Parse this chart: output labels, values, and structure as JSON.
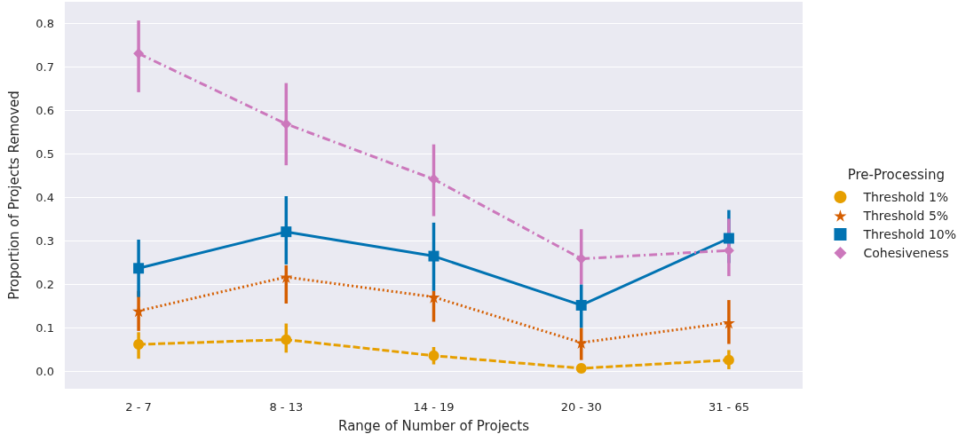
{
  "chart_data": {
    "type": "line",
    "xlabel": "Range of Number of Projects",
    "ylabel": "Proportion of Projects Removed",
    "legend_title": "Pre-Processing",
    "legend": "right",
    "grid": "y",
    "categories": [
      "2 - 7",
      "8 - 13",
      "14 - 19",
      "20 - 30",
      "31 - 65"
    ],
    "ylim": [
      -0.04,
      0.85
    ],
    "yticks": [
      {
        "value": 0,
        "label": "0.0"
      },
      {
        "value": 0.1,
        "label": "0.1"
      },
      {
        "value": 0.2,
        "label": "0.2"
      },
      {
        "value": 0.3,
        "label": "0.3"
      },
      {
        "value": 0.4,
        "label": "0.4"
      },
      {
        "value": 0.5,
        "label": "0.5"
      },
      {
        "value": 0.6,
        "label": "0.6"
      },
      {
        "value": 0.7,
        "label": "0.7"
      },
      {
        "value": 0.8,
        "label": "0.8"
      }
    ],
    "series": [
      {
        "name": "Threshold 1%",
        "color": "#e69f00",
        "marker": "circle",
        "line_style": "dashed",
        "values": [
          0.062,
          0.073,
          0.036,
          0.007,
          0.026
        ],
        "errors": [
          [
            0.029,
            0.09
          ],
          [
            0.043,
            0.11
          ],
          [
            0.016,
            0.056
          ],
          [
            0.002,
            0.014
          ],
          [
            0.005,
            0.049
          ]
        ]
      },
      {
        "name": "Threshold 5%",
        "color": "#d55e00",
        "marker": "star",
        "line_style": "dotted",
        "values": [
          0.139,
          0.217,
          0.171,
          0.066,
          0.112
        ],
        "errors": [
          [
            0.093,
            0.185
          ],
          [
            0.156,
            0.244
          ],
          [
            0.114,
            0.185
          ],
          [
            0.026,
            0.1
          ],
          [
            0.063,
            0.164
          ]
        ]
      },
      {
        "name": "Threshold 10%",
        "color": "#0173b2",
        "marker": "square",
        "line_style": "solid",
        "values": [
          0.237,
          0.321,
          0.265,
          0.152,
          0.306
        ],
        "errors": [
          [
            0.171,
            0.303
          ],
          [
            0.246,
            0.403
          ],
          [
            0.185,
            0.342
          ],
          [
            0.1,
            0.2
          ],
          [
            0.249,
            0.371
          ]
        ]
      },
      {
        "name": "Cohesiveness",
        "color": "#cc78bc",
        "marker": "diamond",
        "line_style": "dashdot",
        "values": [
          0.731,
          0.569,
          0.442,
          0.259,
          0.278
        ],
        "errors": [
          [
            0.642,
            0.807
          ],
          [
            0.474,
            0.663
          ],
          [
            0.357,
            0.522
          ],
          [
            0.2,
            0.327
          ],
          [
            0.219,
            0.351
          ]
        ]
      }
    ]
  }
}
